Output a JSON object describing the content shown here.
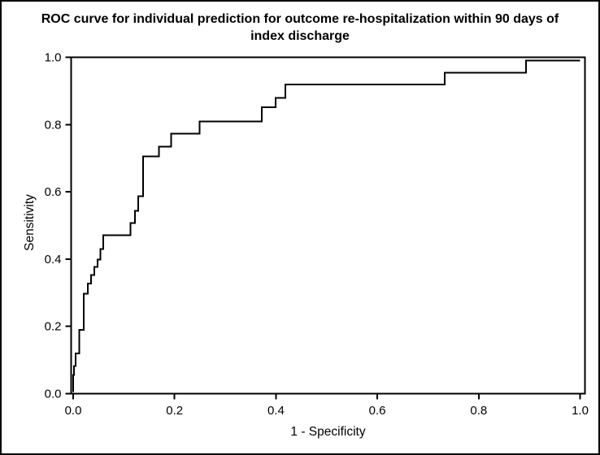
{
  "figure": {
    "background": "#ffffff",
    "border_color": "#000000"
  },
  "chart_data": {
    "type": "line",
    "variant": "roc_step_curve",
    "title": "ROC curve for individual prediction for outcome re-hospitalization within 90 days of index discharge",
    "xlabel": "1 - Specificity",
    "ylabel": "Sensitivity",
    "xlim": [
      0.0,
      1.0
    ],
    "ylim": [
      0.0,
      1.0
    ],
    "xticks": [
      "0.0",
      "0.2",
      "0.4",
      "0.6",
      "0.8",
      "1.0"
    ],
    "yticks": [
      "0.0",
      "0.2",
      "0.4",
      "0.6",
      "0.8",
      "1.0"
    ],
    "grid": false,
    "legend": false,
    "frame": "full_box",
    "line_color": "#000000",
    "series": [
      {
        "name": "ROC curve",
        "step_points_fpr_tpr": [
          [
            0.0,
            0.0
          ],
          [
            0.0,
            0.051
          ],
          [
            0.002,
            0.051
          ],
          [
            0.002,
            0.078
          ],
          [
            0.005,
            0.078
          ],
          [
            0.005,
            0.117
          ],
          [
            0.012,
            0.117
          ],
          [
            0.012,
            0.188
          ],
          [
            0.021,
            0.188
          ],
          [
            0.021,
            0.297
          ],
          [
            0.029,
            0.297
          ],
          [
            0.029,
            0.327
          ],
          [
            0.035,
            0.327
          ],
          [
            0.035,
            0.353
          ],
          [
            0.042,
            0.353
          ],
          [
            0.042,
            0.377
          ],
          [
            0.048,
            0.377
          ],
          [
            0.048,
            0.399
          ],
          [
            0.054,
            0.399
          ],
          [
            0.054,
            0.431
          ],
          [
            0.059,
            0.431
          ],
          [
            0.059,
            0.473
          ],
          [
            0.113,
            0.473
          ],
          [
            0.113,
            0.51
          ],
          [
            0.122,
            0.51
          ],
          [
            0.122,
            0.547
          ],
          [
            0.128,
            0.547
          ],
          [
            0.128,
            0.591
          ],
          [
            0.138,
            0.591
          ],
          [
            0.138,
            0.711
          ],
          [
            0.169,
            0.711
          ],
          [
            0.169,
            0.74
          ],
          [
            0.193,
            0.74
          ],
          [
            0.193,
            0.779
          ],
          [
            0.249,
            0.779
          ],
          [
            0.249,
            0.816
          ],
          [
            0.372,
            0.816
          ],
          [
            0.372,
            0.859
          ],
          [
            0.399,
            0.859
          ],
          [
            0.399,
            0.887
          ],
          [
            0.419,
            0.887
          ],
          [
            0.419,
            0.928
          ],
          [
            0.733,
            0.928
          ],
          [
            0.733,
            0.963
          ],
          [
            0.893,
            0.963
          ],
          [
            0.893,
            1.0
          ],
          [
            1.0,
            1.0
          ]
        ]
      }
    ]
  }
}
